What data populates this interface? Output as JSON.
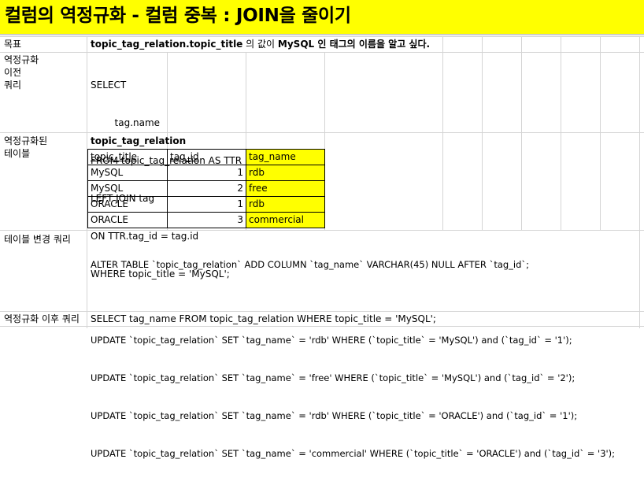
{
  "title": "컬럼의 역정규화 - 컬럼 중복 : JOIN을 줄이기",
  "colors": {
    "highlight": "#ffff00",
    "grid": "#d4d4d4"
  },
  "rows": {
    "goal": {
      "label": "목표",
      "text_bold": "topic_tag_relation.topic_title",
      "text_mid": " 의 값이 ",
      "text_bold2": "MySQL",
      "text_end": " 인 태그의 이름을 알고 싶다."
    },
    "before_query": {
      "label_lines": [
        "역정규화",
        "이전",
        "쿼리"
      ],
      "query_lines": [
        "SELECT",
        "        tag.name",
        "FROM topic_tag_relation AS TTR",
        "LEFT JOIN tag",
        "ON TTR.tag_id = tag.id",
        "WHERE topic_title = 'MySQL';"
      ]
    },
    "denorm_table": {
      "label_lines": [
        "역정규화된",
        "테이블"
      ],
      "table_name": "topic_tag_relation",
      "headers": [
        "topic_title",
        "tag_id",
        "tag_name"
      ],
      "rows": [
        [
          "MySQL",
          "1",
          "rdb"
        ],
        [
          "MySQL",
          "2",
          "free"
        ],
        [
          "ORACLE",
          "1",
          "rdb"
        ],
        [
          "ORACLE",
          "3",
          "commercial"
        ]
      ]
    },
    "alter_query": {
      "label": "테이블 변경 쿼리",
      "lines": [
        "ALTER TABLE `topic_tag_relation` ADD COLUMN `tag_name` VARCHAR(45) NULL AFTER `tag_id`;",
        "",
        "UPDATE `topic_tag_relation` SET `tag_name` = 'rdb' WHERE (`topic_title` = 'MySQL') and (`tag_id` = '1');",
        "UPDATE `topic_tag_relation` SET `tag_name` = 'free' WHERE (`topic_title` = 'MySQL') and (`tag_id` = '2');",
        "UPDATE `topic_tag_relation` SET `tag_name` = 'rdb' WHERE (`topic_title` = 'ORACLE') and (`tag_id` = '1');",
        "UPDATE `topic_tag_relation` SET `tag_name` = 'commercial' WHERE (`topic_title` = 'ORACLE') and (`tag_id` = '3');"
      ]
    },
    "after_query": {
      "label": "역정규화 이후 쿼리",
      "text": "SELECT tag_name FROM topic_tag_relation WHERE topic_title = 'MySQL';"
    }
  }
}
